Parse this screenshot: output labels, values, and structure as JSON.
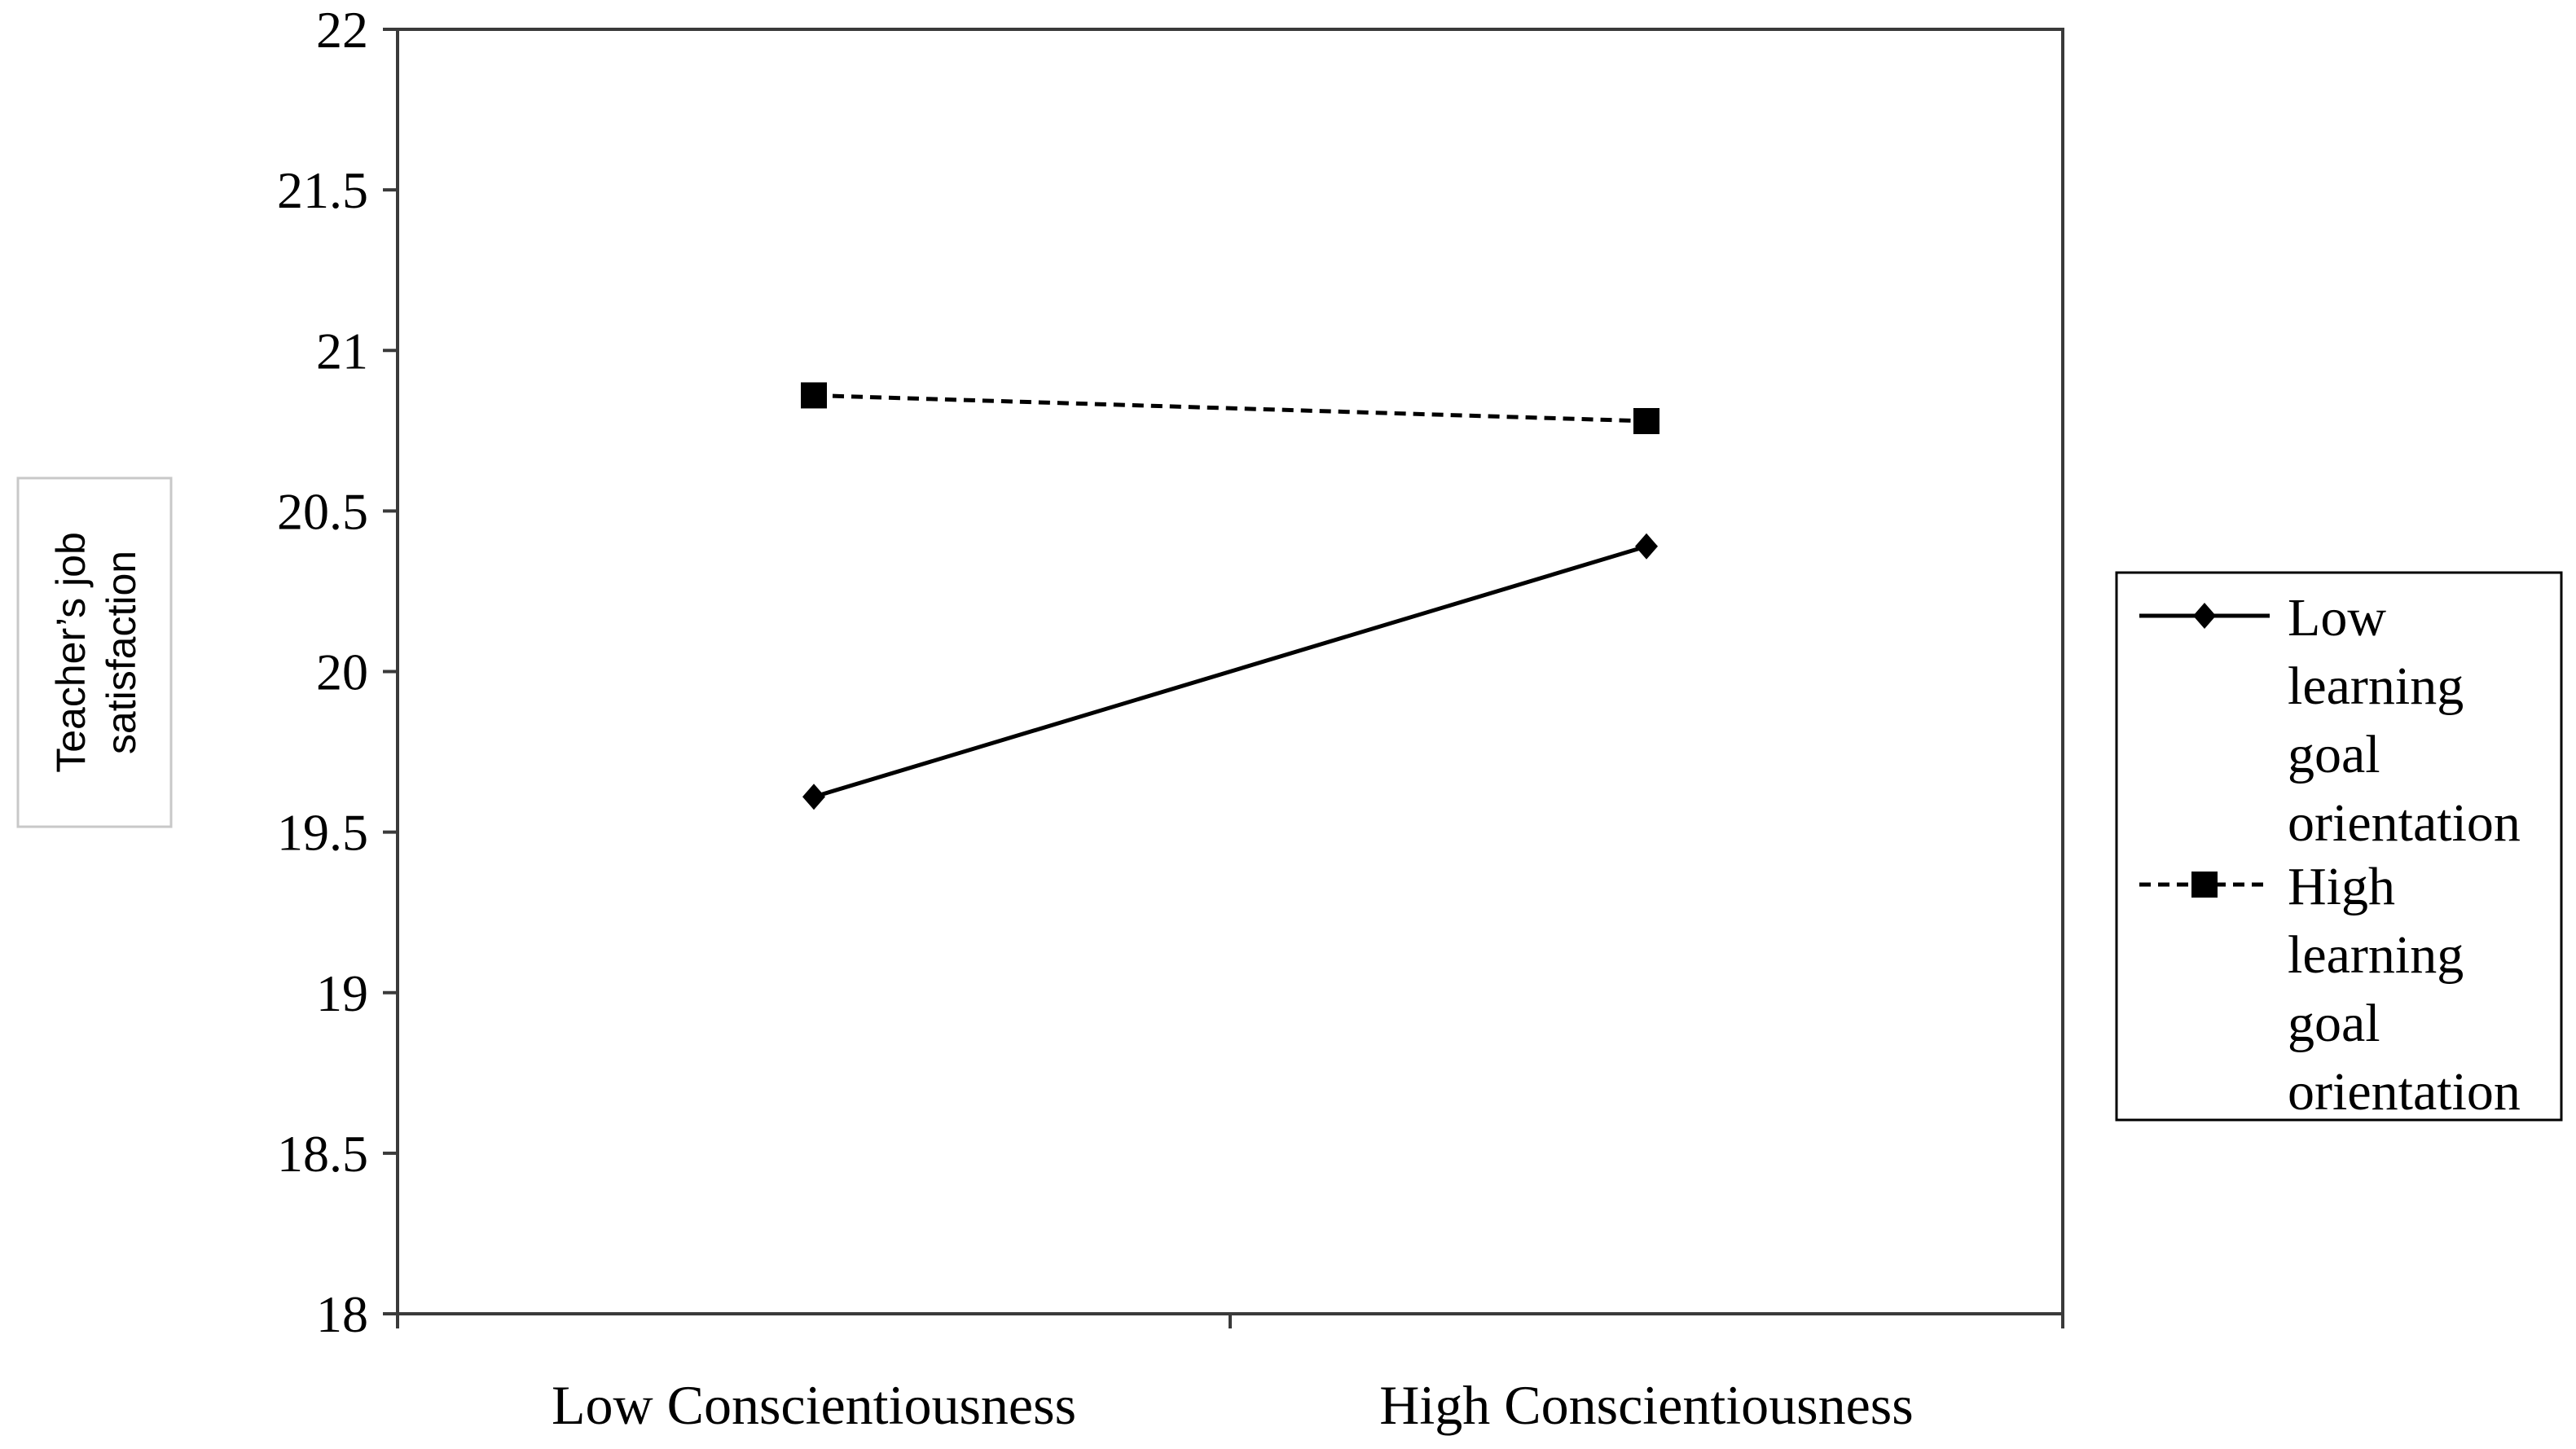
{
  "chart_data": {
    "type": "line",
    "title": "",
    "xlabel": "",
    "ylabel": "Teacher’s job satisfaction",
    "ylabel_lines": [
      "Teacher’s job",
      "satisfaction"
    ],
    "categories": [
      "Low Conscientiousness",
      "High Conscientiousness"
    ],
    "ylim": [
      18,
      22
    ],
    "yticks": [
      18,
      18.5,
      19,
      19.5,
      20,
      20.5,
      21,
      21.5,
      22
    ],
    "ytick_labels": [
      "18",
      "18.5",
      "19",
      "19.5",
      "20",
      "20.5",
      "21",
      "21.5",
      "22"
    ],
    "grid": false,
    "legend_position": "right",
    "series": [
      {
        "name": "Low learning goal orientation",
        "name_lines": [
          "Low",
          "learning",
          "goal",
          "orientation"
        ],
        "values": [
          19.61,
          20.39
        ],
        "line_style": "solid",
        "marker": "diamond",
        "color": "#000000"
      },
      {
        "name": "High learning goal orientation",
        "name_lines": [
          "High",
          "learning",
          "goal",
          "orientation"
        ],
        "values": [
          20.86,
          20.78
        ],
        "line_style": "dashed",
        "marker": "square",
        "color": "#000000"
      }
    ]
  }
}
